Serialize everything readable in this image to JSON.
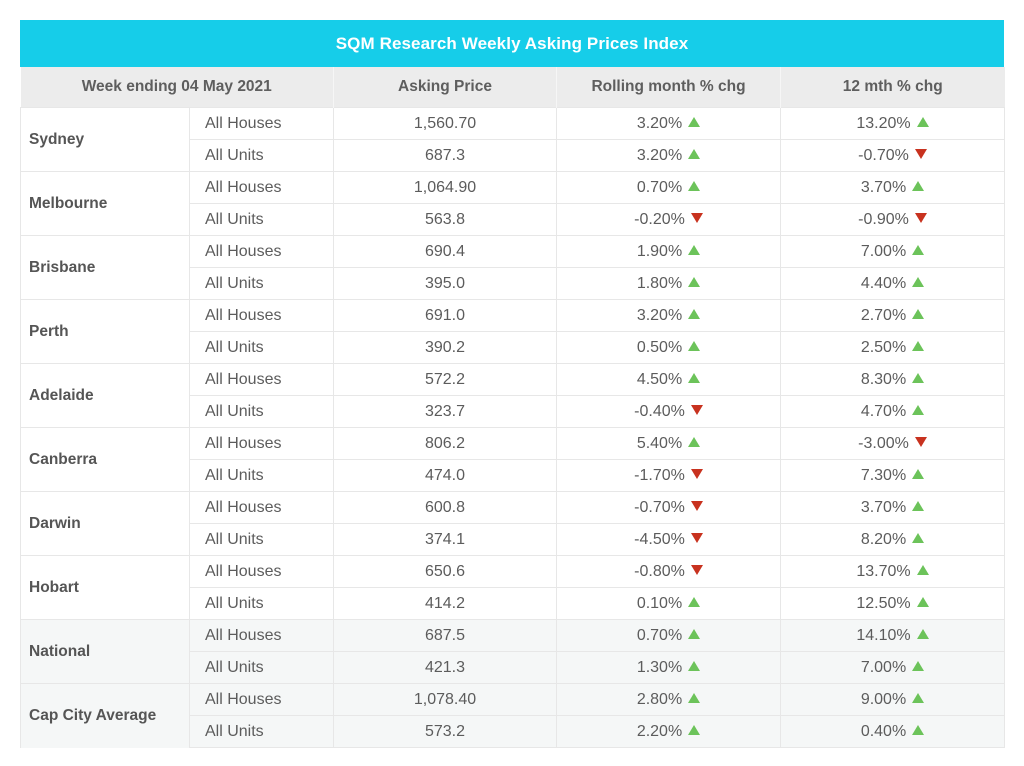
{
  "title": "SQM Research Weekly Asking Prices Index",
  "headers": {
    "week": "Week ending 04 May 2021",
    "price": "Asking Price",
    "rolling": "Rolling month % chg",
    "twelve": "12 mth % chg"
  },
  "colors": {
    "title_bg": "#16cde9",
    "up": "#6cc35a",
    "down": "#c8321f"
  },
  "rows": [
    {
      "city": "Sydney",
      "items": [
        {
          "cat": "All Houses",
          "price": "1,560.70",
          "rolling": "3.20%",
          "rolling_dir": "up",
          "twelve": "13.20%",
          "twelve_dir": "up"
        },
        {
          "cat": "All Units",
          "price": "687.3",
          "rolling": "3.20%",
          "rolling_dir": "up",
          "twelve": "-0.70%",
          "twelve_dir": "down"
        }
      ]
    },
    {
      "city": "Melbourne",
      "items": [
        {
          "cat": "All Houses",
          "price": "1,064.90",
          "rolling": "0.70%",
          "rolling_dir": "up",
          "twelve": "3.70%",
          "twelve_dir": "up"
        },
        {
          "cat": "All Units",
          "price": "563.8",
          "rolling": "-0.20%",
          "rolling_dir": "down",
          "twelve": "-0.90%",
          "twelve_dir": "down"
        }
      ]
    },
    {
      "city": "Brisbane",
      "items": [
        {
          "cat": "All Houses",
          "price": "690.4",
          "rolling": "1.90%",
          "rolling_dir": "up",
          "twelve": "7.00%",
          "twelve_dir": "up"
        },
        {
          "cat": "All Units",
          "price": "395.0",
          "rolling": "1.80%",
          "rolling_dir": "up",
          "twelve": "4.40%",
          "twelve_dir": "up"
        }
      ]
    },
    {
      "city": "Perth",
      "items": [
        {
          "cat": "All Houses",
          "price": "691.0",
          "rolling": "3.20%",
          "rolling_dir": "up",
          "twelve": "2.70%",
          "twelve_dir": "up"
        },
        {
          "cat": "All Units",
          "price": "390.2",
          "rolling": "0.50%",
          "rolling_dir": "up",
          "twelve": "2.50%",
          "twelve_dir": "up"
        }
      ]
    },
    {
      "city": "Adelaide",
      "items": [
        {
          "cat": "All Houses",
          "price": "572.2",
          "rolling": "4.50%",
          "rolling_dir": "up",
          "twelve": "8.30%",
          "twelve_dir": "up"
        },
        {
          "cat": "All Units",
          "price": "323.7",
          "rolling": "-0.40%",
          "rolling_dir": "down",
          "twelve": "4.70%",
          "twelve_dir": "up"
        }
      ]
    },
    {
      "city": "Canberra",
      "items": [
        {
          "cat": "All Houses",
          "price": "806.2",
          "rolling": "5.40%",
          "rolling_dir": "up",
          "twelve": "-3.00%",
          "twelve_dir": "down"
        },
        {
          "cat": "All Units",
          "price": "474.0",
          "rolling": "-1.70%",
          "rolling_dir": "down",
          "twelve": "7.30%",
          "twelve_dir": "up"
        }
      ]
    },
    {
      "city": "Darwin",
      "items": [
        {
          "cat": "All Houses",
          "price": "600.8",
          "rolling": "-0.70%",
          "rolling_dir": "down",
          "twelve": "3.70%",
          "twelve_dir": "up"
        },
        {
          "cat": "All Units",
          "price": "374.1",
          "rolling": "-4.50%",
          "rolling_dir": "down",
          "twelve": "8.20%",
          "twelve_dir": "up"
        }
      ]
    },
    {
      "city": "Hobart",
      "items": [
        {
          "cat": "All Houses",
          "price": "650.6",
          "rolling": "-0.80%",
          "rolling_dir": "down",
          "twelve": "13.70%",
          "twelve_dir": "up"
        },
        {
          "cat": "All Units",
          "price": "414.2",
          "rolling": "0.10%",
          "rolling_dir": "up",
          "twelve": "12.50%",
          "twelve_dir": "up"
        }
      ]
    },
    {
      "city": "National",
      "shaded": true,
      "items": [
        {
          "cat": "All Houses",
          "price": "687.5",
          "rolling": "0.70%",
          "rolling_dir": "up",
          "twelve": "14.10%",
          "twelve_dir": "up"
        },
        {
          "cat": "All Units",
          "price": "421.3",
          "rolling": "1.30%",
          "rolling_dir": "up",
          "twelve": "7.00%",
          "twelve_dir": "up"
        }
      ]
    },
    {
      "city": "Cap City Average",
      "shaded": true,
      "items": [
        {
          "cat": "All Houses",
          "price": "1,078.40",
          "rolling": "2.80%",
          "rolling_dir": "up",
          "twelve": "9.00%",
          "twelve_dir": "up"
        },
        {
          "cat": "All Units",
          "price": "573.2",
          "rolling": "2.20%",
          "rolling_dir": "up",
          "twelve": "0.40%",
          "twelve_dir": "up"
        }
      ]
    }
  ]
}
